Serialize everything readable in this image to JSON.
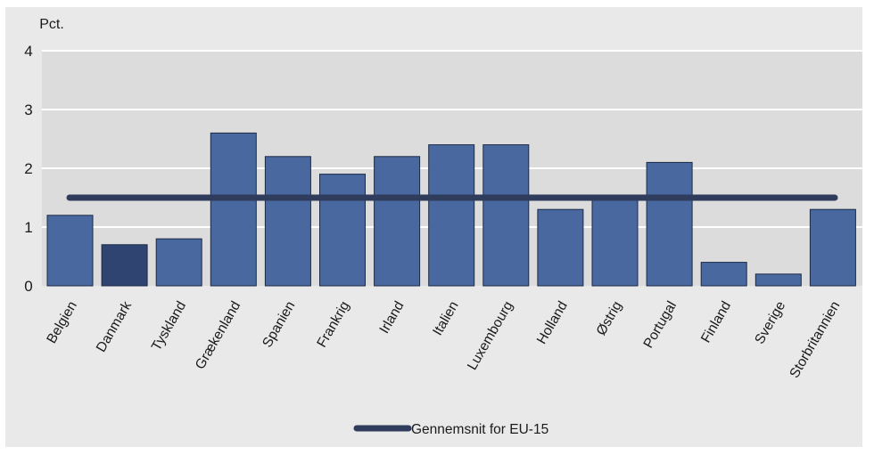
{
  "chart_data": {
    "type": "bar",
    "y_unit_label": "Pct.",
    "categories": [
      "Belgien",
      "Danmark",
      "Tyskland",
      "Grækenland",
      "Spanien",
      "Frankrig",
      "Irland",
      "Italien",
      "Luxembourg",
      "Holland",
      "Østrig",
      "Portugal",
      "Finland",
      "Sverige",
      "Storbritannien"
    ],
    "values": [
      1.2,
      0.7,
      0.8,
      2.6,
      2.2,
      1.9,
      2.2,
      2.4,
      2.4,
      1.3,
      1.5,
      2.1,
      0.4,
      0.2,
      1.3
    ],
    "highlight_category": "Danmark",
    "ylim": [
      0,
      4
    ],
    "yticks": [
      0,
      1,
      2,
      3,
      4
    ],
    "grid": true,
    "reference_line": {
      "name": "Gennemsnit for EU-15",
      "value": 1.5
    },
    "legend": {
      "position": "bottom-center",
      "entries": [
        "Gennemsnit for EU-15"
      ]
    },
    "colors": {
      "bar": "#4a68a0",
      "bar_highlight": "#2f4471",
      "bar_stroke": "#1c2a45",
      "reference_line": "#2f3c5c",
      "plot_background": "#dcdcdc",
      "outer_background": "#e9e9e9",
      "grid": "#ffffff"
    }
  }
}
